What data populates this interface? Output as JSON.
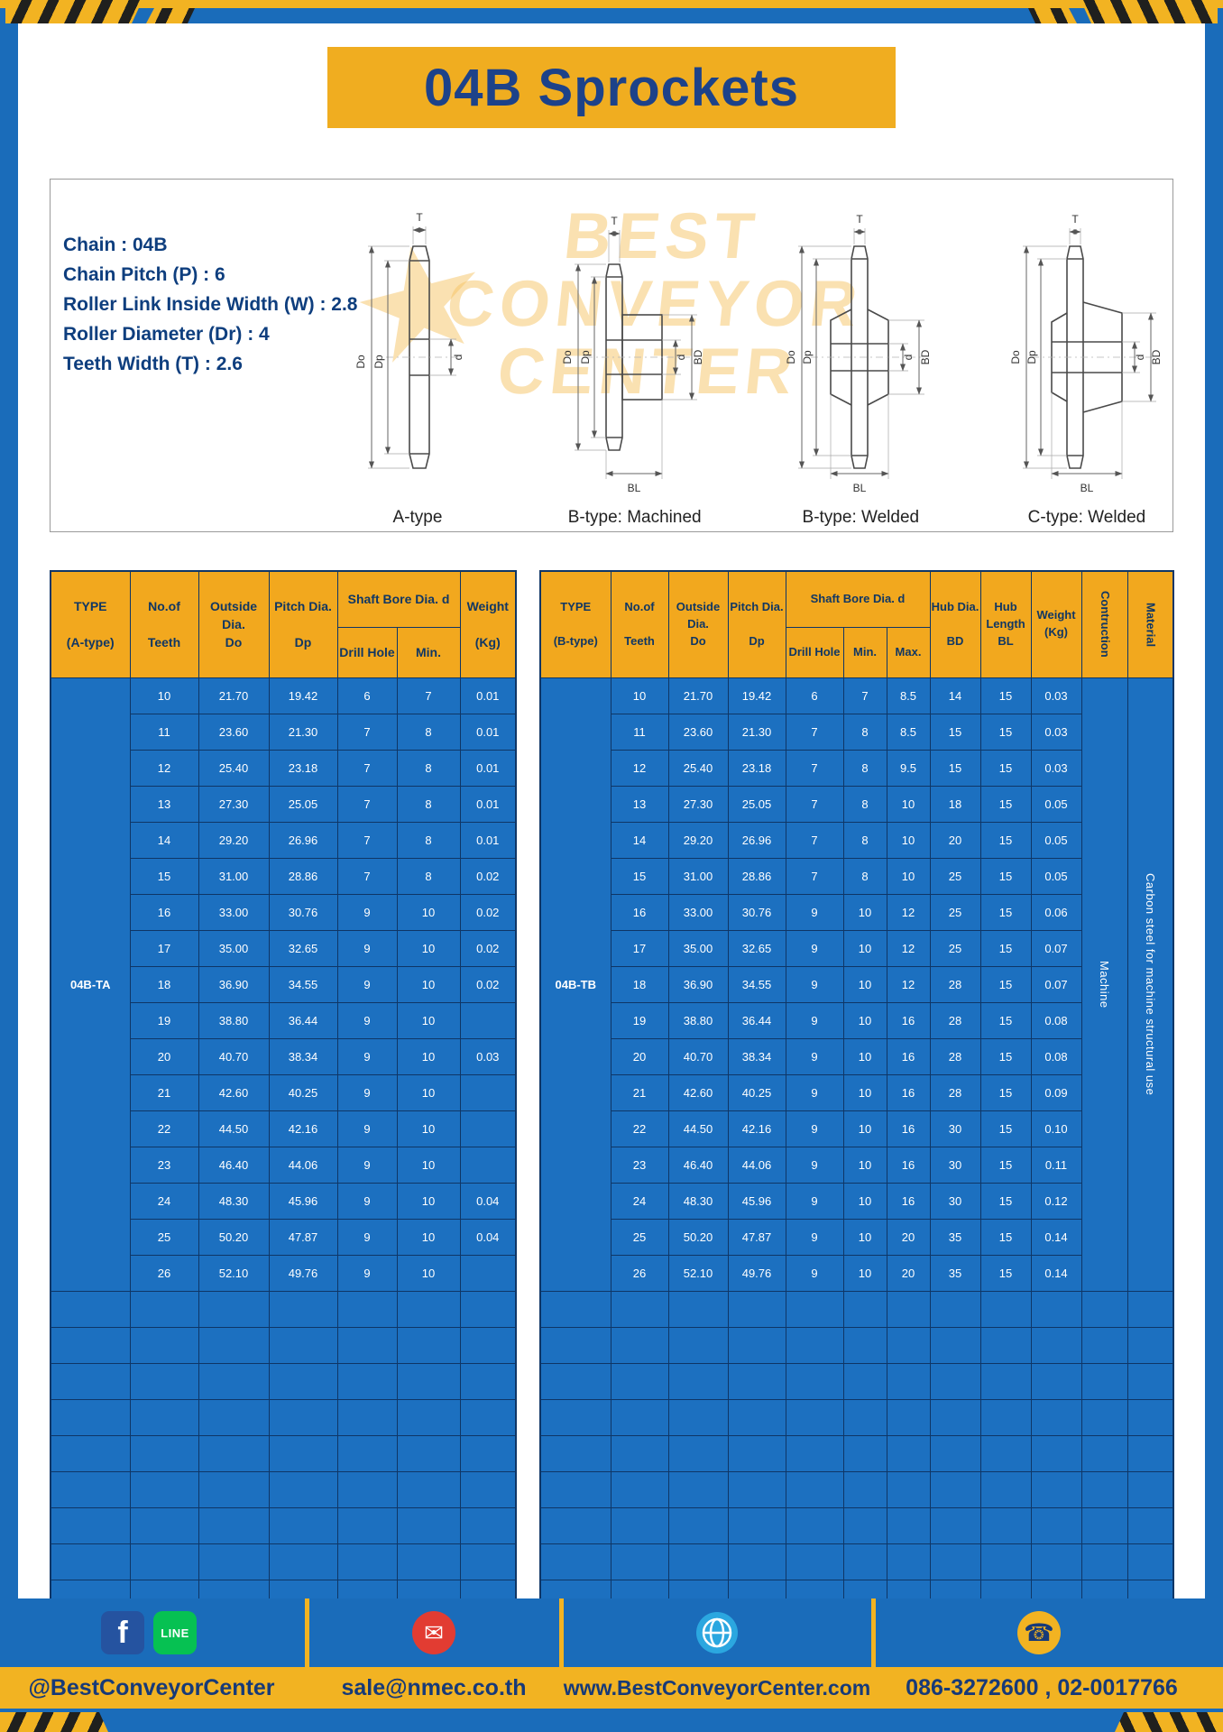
{
  "page": {
    "title": "04B Sprockets"
  },
  "specs": {
    "lines": [
      "Chain  :  04B",
      "Chain Pitch (P)  :  6",
      "Roller Link Inside Width (W)  :  2.8",
      "Roller Diameter (Dr)  :  4",
      "Teeth Width (T)  :  2.6"
    ]
  },
  "watermark": {
    "lines": [
      "BEST",
      "CONVEYOR",
      "CENTER"
    ],
    "star": "★"
  },
  "diagrams": [
    {
      "caption": "A-type",
      "t": "T",
      "do": "Do",
      "dp": "Dp",
      "d": "d"
    },
    {
      "caption": "B-type: Machined",
      "t": "T",
      "do": "Do",
      "dp": "Dp",
      "d": "d",
      "bd": "BD",
      "bl": "BL"
    },
    {
      "caption": "B-type: Welded",
      "t": "T",
      "do": "Do",
      "dp": "Dp",
      "d": "d",
      "bd": "BD",
      "bl": "BL"
    },
    {
      "caption": "C-type: Welded",
      "t": "T",
      "do": "Do",
      "dp": "Dp",
      "d": "d",
      "bd": "BD",
      "bl": "BL"
    }
  ],
  "table_a": {
    "type_label": "04B-TA",
    "empty_rows": 9,
    "headers": {
      "type": "TYPE\n\n(A-type)",
      "teeth": "No.of\n\nTeeth",
      "outside": "Outside\nDia.\nDo",
      "pitch": "Pitch Dia.\n\nDp",
      "shaft_bore": "Shaft Bore Dia. d",
      "drill_hole": "Drill Hole",
      "min": "Min.",
      "weight": "Weight\n\n(Kg)"
    },
    "rows": [
      [
        "10",
        "21.70",
        "19.42",
        "6",
        "7",
        "0.01"
      ],
      [
        "11",
        "23.60",
        "21.30",
        "7",
        "8",
        "0.01"
      ],
      [
        "12",
        "25.40",
        "23.18",
        "7",
        "8",
        "0.01"
      ],
      [
        "13",
        "27.30",
        "25.05",
        "7",
        "8",
        "0.01"
      ],
      [
        "14",
        "29.20",
        "26.96",
        "7",
        "8",
        "0.01"
      ],
      [
        "15",
        "31.00",
        "28.86",
        "7",
        "8",
        "0.02"
      ],
      [
        "16",
        "33.00",
        "30.76",
        "9",
        "10",
        "0.02"
      ],
      [
        "17",
        "35.00",
        "32.65",
        "9",
        "10",
        "0.02"
      ],
      [
        "18",
        "36.90",
        "34.55",
        "9",
        "10",
        "0.02"
      ],
      [
        "19",
        "38.80",
        "36.44",
        "9",
        "10",
        ""
      ],
      [
        "20",
        "40.70",
        "38.34",
        "9",
        "10",
        "0.03"
      ],
      [
        "21",
        "42.60",
        "40.25",
        "9",
        "10",
        ""
      ],
      [
        "22",
        "44.50",
        "42.16",
        "9",
        "10",
        ""
      ],
      [
        "23",
        "46.40",
        "44.06",
        "9",
        "10",
        ""
      ],
      [
        "24",
        "48.30",
        "45.96",
        "9",
        "10",
        "0.04"
      ],
      [
        "25",
        "50.20",
        "47.87",
        "9",
        "10",
        "0.04"
      ],
      [
        "26",
        "52.10",
        "49.76",
        "9",
        "10",
        ""
      ]
    ]
  },
  "table_b": {
    "type_label": "04B-TB",
    "empty_rows": 9,
    "construction": "Machine",
    "material": "Carbon steel for machine structural use",
    "headers": {
      "type": "TYPE\n\n(B-type)",
      "teeth": "No.of\n\nTeeth",
      "outside": "Outside\nDia.\nDo",
      "pitch": "Pitch Dia.\n\nDp",
      "shaft_bore": "Shaft Bore Dia. d",
      "drill_hole": "Drill Hole",
      "min": "Min.",
      "max": "Max.",
      "hub_dia": "Hub Dia.\n\nBD",
      "hub_length": "Hub\nLength\nBL",
      "weight": "Weight\n(Kg)",
      "construction": "Contruction",
      "material": "Material"
    },
    "rows": [
      [
        "10",
        "21.70",
        "19.42",
        "6",
        "7",
        "8.5",
        "14",
        "15",
        "0.03"
      ],
      [
        "11",
        "23.60",
        "21.30",
        "7",
        "8",
        "8.5",
        "15",
        "15",
        "0.03"
      ],
      [
        "12",
        "25.40",
        "23.18",
        "7",
        "8",
        "9.5",
        "15",
        "15",
        "0.03"
      ],
      [
        "13",
        "27.30",
        "25.05",
        "7",
        "8",
        "10",
        "18",
        "15",
        "0.05"
      ],
      [
        "14",
        "29.20",
        "26.96",
        "7",
        "8",
        "10",
        "20",
        "15",
        "0.05"
      ],
      [
        "15",
        "31.00",
        "28.86",
        "7",
        "8",
        "10",
        "25",
        "15",
        "0.05"
      ],
      [
        "16",
        "33.00",
        "30.76",
        "9",
        "10",
        "12",
        "25",
        "15",
        "0.06"
      ],
      [
        "17",
        "35.00",
        "32.65",
        "9",
        "10",
        "12",
        "25",
        "15",
        "0.07"
      ],
      [
        "18",
        "36.90",
        "34.55",
        "9",
        "10",
        "12",
        "28",
        "15",
        "0.07"
      ],
      [
        "19",
        "38.80",
        "36.44",
        "9",
        "10",
        "16",
        "28",
        "15",
        "0.08"
      ],
      [
        "20",
        "40.70",
        "38.34",
        "9",
        "10",
        "16",
        "28",
        "15",
        "0.08"
      ],
      [
        "21",
        "42.60",
        "40.25",
        "9",
        "10",
        "16",
        "28",
        "15",
        "0.09"
      ],
      [
        "22",
        "44.50",
        "42.16",
        "9",
        "10",
        "16",
        "30",
        "15",
        "0.10"
      ],
      [
        "23",
        "46.40",
        "44.06",
        "9",
        "10",
        "16",
        "30",
        "15",
        "0.11"
      ],
      [
        "24",
        "48.30",
        "45.96",
        "9",
        "10",
        "16",
        "30",
        "15",
        "0.12"
      ],
      [
        "25",
        "50.20",
        "47.87",
        "9",
        "10",
        "20",
        "35",
        "15",
        "0.14"
      ],
      [
        "26",
        "52.10",
        "49.76",
        "9",
        "10",
        "20",
        "35",
        "15",
        "0.14"
      ]
    ]
  },
  "footer": {
    "social_handle": "@BestConveyorCenter",
    "email": "sale@nmec.co.th",
    "website": "www.BestConveyorCenter.com",
    "phone": "086-3272600 , 02-0017766",
    "icons": {
      "facebook": "f",
      "line": "LINE",
      "email": "✉",
      "phone": "☎"
    }
  }
}
